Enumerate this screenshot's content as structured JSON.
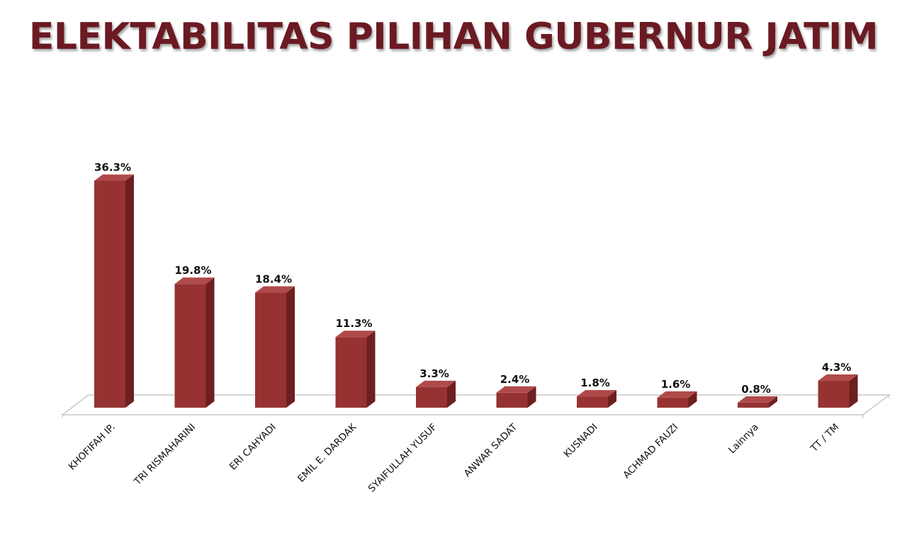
{
  "chart_data": {
    "type": "bar",
    "title": "ELEKTABILITAS PILIHAN GUBERNUR JATIM",
    "categories": [
      "KHOFIFAH IP.",
      "TRI RISMAHARINI",
      "ERI CAHYADI",
      "EMIL E. DARDAK",
      "SYAIFULLAH YUSUF",
      "ANWAR SADAT",
      "KUSNADI",
      "ACHMAD FAUZI",
      "Lainnya",
      "TT / TM"
    ],
    "values": [
      36.3,
      19.8,
      18.4,
      11.3,
      3.3,
      2.4,
      1.8,
      1.6,
      0.8,
      4.3
    ],
    "data_labels": [
      "36.3%",
      "19.8%",
      "18.4%",
      "11.3%",
      "3.3%",
      "2.4%",
      "1.8%",
      "1.6%",
      "0.8%",
      "4.3%"
    ],
    "xlabel": "",
    "ylabel": "",
    "grid": false,
    "legend": "none",
    "style": "3d-bar"
  },
  "colors": {
    "title": "#6b1a22",
    "bar_front": "#963232",
    "bar_side": "#6e1f1f",
    "bar_top": "#b04a4a",
    "floor": "#ffffff",
    "floor_stroke": "#bdbdbd"
  }
}
